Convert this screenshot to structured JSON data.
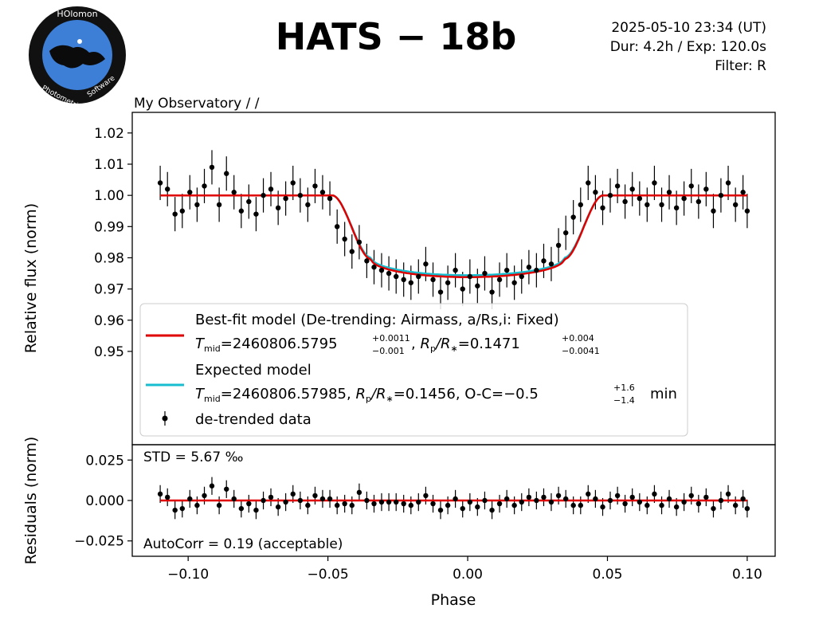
{
  "header": {
    "logo_text_top": "HOlomon",
    "logo_text_left": "Photometric",
    "logo_text_right": "Software",
    "title": "HATS − 18b",
    "info_line1": "2025-05-10 23:34 (UT)",
    "info_line2": "Dur: 4.2h / Exp: 120.0s",
    "info_line3": "Filter: R",
    "observatory": "My Observatory /  /"
  },
  "colors": {
    "best_fit": "#e00000",
    "expected": "#17becf",
    "data": "#000000",
    "frame": "#000000"
  },
  "legend": {
    "best_fit_label": "Best-fit model (De-trending: Airmass, a/Rs,i: Fixed)",
    "best_fit_tmid_value": "=2460806.5795",
    "best_fit_tmid_err_plus": "+0.0011",
    "best_fit_tmid_err_minus": "−0.001",
    "best_fit_rp_value": "=0.1471",
    "best_fit_rp_err_plus": "+0.004",
    "best_fit_rp_err_minus": "−0.0041",
    "expected_label": "Expected model",
    "expected_tmid_value": "=2460806.57985,",
    "expected_rp_value": "=0.1456, O-C=−0.5",
    "expected_oc_err_plus": "+1.6",
    "expected_oc_err_minus": "−1.4",
    "expected_oc_unit": "min",
    "data_label": "de-trended data",
    "t_symbol": "T",
    "t_sub": "mid",
    "rp_symbol": "R",
    "rp_sub": "p",
    "rstar_symbol": "/R",
    "rstar_sub": "∗"
  },
  "residual_annotations": {
    "std": "STD = 5.67 ‰",
    "autocorr": "AutoCorr = 0.19 (acceptable)"
  },
  "chart_data": [
    {
      "type": "scatter",
      "panel": "main",
      "title": "HATS − 18b",
      "xlabel": "",
      "ylabel": "Relative flux (norm)",
      "xlim": [
        -0.12,
        0.11
      ],
      "ylim": [
        0.9201,
        1.0266
      ],
      "yticks": [
        0.95,
        0.96,
        0.97,
        0.98,
        0.99,
        1.0,
        1.01,
        1.02
      ],
      "ytick_labels": [
        "0.95",
        "0.96",
        "0.97",
        "0.98",
        "0.99",
        "1.00",
        "1.01",
        "1.02"
      ],
      "transit_model": {
        "center": 0.0,
        "half_duration": 0.0485,
        "ingress": 0.014,
        "depth_best": 0.0262,
        "depth_expected": 0.0256,
        "x_range": [
          -0.11,
          0.1
        ]
      },
      "series": [
        {
          "name": "de-trended data",
          "error_bar": 0.0055,
          "x": [
            -0.11,
            -0.1074,
            -0.1047,
            -0.1021,
            -0.0994,
            -0.0968,
            -0.0942,
            -0.0915,
            -0.0889,
            -0.0863,
            -0.0836,
            -0.081,
            -0.0783,
            -0.0757,
            -0.0731,
            -0.0704,
            -0.0678,
            -0.0651,
            -0.0625,
            -0.0599,
            -0.0572,
            -0.0546,
            -0.0519,
            -0.0493,
            -0.0467,
            -0.044,
            -0.0414,
            -0.0388,
            -0.0361,
            -0.0335,
            -0.0308,
            -0.0282,
            -0.0256,
            -0.0229,
            -0.0203,
            -0.0176,
            -0.015,
            -0.0124,
            -0.0097,
            -0.0071,
            -0.0044,
            -0.0018,
            0.0008,
            0.0035,
            0.0061,
            0.0087,
            0.0114,
            0.014,
            0.0167,
            0.0193,
            0.0219,
            0.0246,
            0.0272,
            0.0299,
            0.0325,
            0.0351,
            0.0378,
            0.0404,
            0.0431,
            0.0457,
            0.0483,
            0.051,
            0.0536,
            0.0563,
            0.0589,
            0.0615,
            0.0642,
            0.0668,
            0.0694,
            0.0721,
            0.0747,
            0.0774,
            0.08,
            0.0826,
            0.0853,
            0.0879,
            0.0906,
            0.0932,
            0.0958,
            0.0985,
            0.1
          ],
          "y": [
            1.004,
            1.002,
            0.994,
            0.995,
            1.001,
            0.997,
            1.003,
            1.009,
            0.997,
            1.007,
            1.001,
            0.995,
            0.998,
            0.994,
            1.0,
            1.002,
            0.996,
            0.999,
            1.004,
            1.0,
            0.997,
            1.003,
            1.001,
            0.999,
            0.99,
            0.986,
            0.982,
            0.985,
            0.979,
            0.977,
            0.976,
            0.975,
            0.974,
            0.973,
            0.972,
            0.974,
            0.978,
            0.973,
            0.969,
            0.972,
            0.976,
            0.97,
            0.974,
            0.971,
            0.975,
            0.969,
            0.973,
            0.976,
            0.972,
            0.974,
            0.977,
            0.976,
            0.979,
            0.978,
            0.984,
            0.988,
            0.993,
            0.997,
            1.004,
            1.001,
            0.996,
            1.0,
            1.003,
            0.998,
            1.002,
            0.999,
            0.997,
            1.004,
            0.997,
            1.001,
            0.996,
            0.999,
            1.003,
            0.998,
            1.002,
            0.995,
            1.0,
            1.004,
            0.997,
            1.001,
            0.995
          ]
        }
      ]
    },
    {
      "type": "scatter",
      "panel": "residuals",
      "xlabel": "Phase",
      "ylabel": "Residuals (norm)",
      "xlim": [
        -0.12,
        0.11
      ],
      "ylim": [
        -0.0345,
        0.0345
      ],
      "xticks": [
        -0.1,
        -0.05,
        0.0,
        0.05,
        0.1
      ],
      "xtick_labels": [
        "−0.10",
        "−0.05",
        "0.00",
        "0.05",
        "0.10"
      ],
      "yticks": [
        -0.025,
        0.0,
        0.025
      ],
      "ytick_labels": [
        "−0.025",
        "0.000",
        "0.025"
      ],
      "zero_line": 0.0,
      "series": [
        {
          "name": "residuals",
          "error_bar": 0.0055,
          "values": [
            0.004,
            0.002,
            -0.006,
            -0.005,
            0.001,
            -0.003,
            0.003,
            0.009,
            -0.003,
            0.007,
            0.001,
            -0.005,
            -0.002,
            -0.006,
            0.0,
            0.002,
            -0.004,
            -0.001,
            0.004,
            0.0,
            -0.003,
            0.003,
            0.001,
            0.001,
            -0.003,
            -0.002,
            -0.003,
            0.005,
            0.0,
            -0.002,
            -0.001,
            -0.001,
            -0.001,
            -0.002,
            -0.003,
            -0.001,
            0.003,
            -0.002,
            -0.006,
            -0.003,
            0.001,
            -0.005,
            -0.001,
            -0.004,
            0.0,
            -0.006,
            -0.002,
            0.001,
            -0.003,
            -0.001,
            0.002,
            0.0,
            0.002,
            -0.001,
            0.003,
            0.001,
            -0.003,
            -0.003,
            0.004,
            0.001,
            -0.004,
            0.0,
            0.003,
            -0.002,
            0.002,
            -0.001,
            -0.003,
            0.004,
            -0.003,
            0.001,
            -0.004,
            -0.001,
            0.003,
            -0.002,
            0.002,
            -0.005,
            0.0,
            0.004,
            -0.003,
            0.001,
            -0.005
          ]
        }
      ]
    }
  ]
}
